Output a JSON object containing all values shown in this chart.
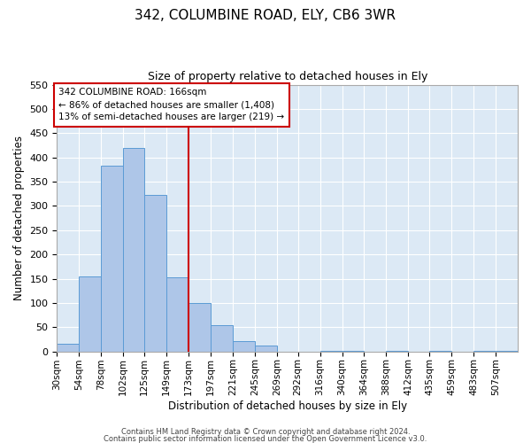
{
  "title": "342, COLUMBINE ROAD, ELY, CB6 3WR",
  "subtitle": "Size of property relative to detached houses in Ely",
  "xlabel": "Distribution of detached houses by size in Ely",
  "ylabel": "Number of detached properties",
  "bin_labels": [
    "30sqm",
    "54sqm",
    "78sqm",
    "102sqm",
    "125sqm",
    "149sqm",
    "173sqm",
    "197sqm",
    "221sqm",
    "245sqm",
    "269sqm",
    "292sqm",
    "316sqm",
    "340sqm",
    "364sqm",
    "388sqm",
    "412sqm",
    "435sqm",
    "459sqm",
    "483sqm",
    "507sqm"
  ],
  "bar_values": [
    15,
    155,
    383,
    420,
    323,
    153,
    100,
    55,
    22,
    12,
    0,
    0,
    2,
    2,
    0,
    2,
    0,
    2,
    0,
    2,
    2
  ],
  "bar_color": "#aec6e8",
  "bar_edge_color": "#5b9bd5",
  "bin_edges": [
    30,
    54,
    78,
    102,
    125,
    149,
    173,
    197,
    221,
    245,
    269,
    292,
    316,
    340,
    364,
    388,
    412,
    435,
    459,
    483,
    507,
    531
  ],
  "annotation_title": "342 COLUMBINE ROAD: 166sqm",
  "annotation_line1": "← 86% of detached houses are smaller (1,408)",
  "annotation_line2": "13% of semi-detached houses are larger (219) →",
  "annotation_box_facecolor": "#ffffff",
  "annotation_box_edgecolor": "#cc0000",
  "vline_color": "#cc0000",
  "vline_x": 173,
  "ylim": [
    0,
    550
  ],
  "yticks": [
    0,
    50,
    100,
    150,
    200,
    250,
    300,
    350,
    400,
    450,
    500,
    550
  ],
  "background_color": "#dce9f5",
  "grid_color": "#ffffff",
  "footer1": "Contains HM Land Registry data © Crown copyright and database right 2024.",
  "footer2": "Contains public sector information licensed under the Open Government Licence v3.0."
}
